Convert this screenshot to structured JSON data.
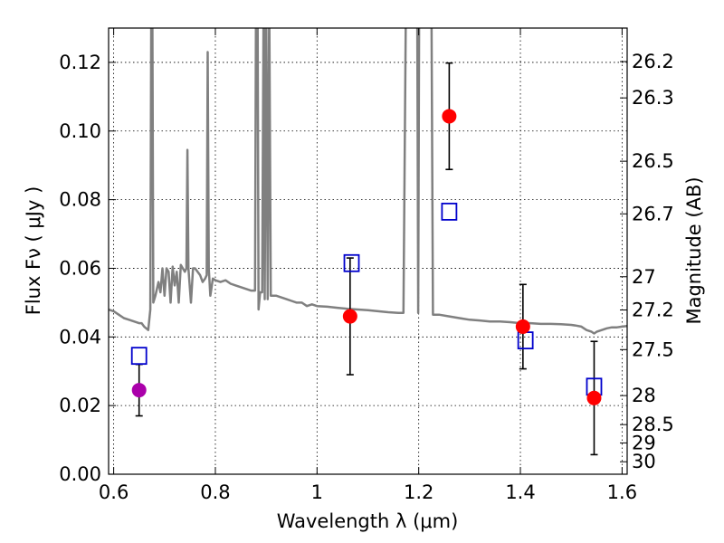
{
  "chart_data": {
    "type": "scatter",
    "xlabel": "Wavelength  λ (μm)",
    "ylabel": "Flux  Fν  ( μJy )",
    "y2label": "Magnitude (AB)",
    "xlim": [
      0.59,
      1.61
    ],
    "ylim": [
      0.0,
      0.13
    ],
    "grid": true,
    "x_ticks": [
      {
        "value": 0.6,
        "label": "0.6"
      },
      {
        "value": 0.8,
        "label": "0.8"
      },
      {
        "value": 1.0,
        "label": "1"
      },
      {
        "value": 1.2,
        "label": "1.2"
      },
      {
        "value": 1.4,
        "label": "1.4"
      },
      {
        "value": 1.6,
        "label": "1.6"
      }
    ],
    "y_ticks": [
      {
        "value": 0.0,
        "label": "0.00"
      },
      {
        "value": 0.02,
        "label": "0.02"
      },
      {
        "value": 0.04,
        "label": "0.04"
      },
      {
        "value": 0.06,
        "label": "0.06"
      },
      {
        "value": 0.08,
        "label": "0.08"
      },
      {
        "value": 0.1,
        "label": "0.10"
      },
      {
        "value": 0.12,
        "label": "0.12"
      }
    ],
    "mag_ticks": [
      "26.2",
      "26.3",
      "26.5",
      "26.7",
      "27",
      "27.2",
      "27.5",
      "28",
      "28.5",
      "29",
      "30"
    ],
    "observed": [
      {
        "x": 0.65,
        "y": 0.0245,
        "err": 0.0075,
        "color": "#aa00aa"
      },
      {
        "x": 1.065,
        "y": 0.046,
        "err": 0.017,
        "color": "#ff0000"
      },
      {
        "x": 1.26,
        "y": 0.1043,
        "err": 0.0155,
        "color": "#ff0000"
      },
      {
        "x": 1.405,
        "y": 0.043,
        "err": 0.0123,
        "color": "#ff0000"
      },
      {
        "x": 1.545,
        "y": 0.0222,
        "err": 0.0165,
        "color": "#ff0000"
      }
    ],
    "model_photometry": {
      "color": "#0000cc",
      "points": [
        {
          "x": 0.65,
          "y": 0.0345
        },
        {
          "x": 1.068,
          "y": 0.0615
        },
        {
          "x": 1.26,
          "y": 0.0765
        },
        {
          "x": 1.41,
          "y": 0.039
        },
        {
          "x": 1.545,
          "y": 0.0255
        }
      ]
    },
    "spectrum": {
      "color": "#808080",
      "points": [
        [
          0.59,
          0.048
        ],
        [
          0.6,
          0.0475
        ],
        [
          0.61,
          0.0465
        ],
        [
          0.62,
          0.0455
        ],
        [
          0.63,
          0.045
        ],
        [
          0.64,
          0.0445
        ],
        [
          0.65,
          0.044
        ],
        [
          0.655,
          0.044
        ],
        [
          0.66,
          0.043
        ],
        [
          0.668,
          0.042
        ],
        [
          0.672,
          0.048
        ],
        [
          0.674,
          0.14
        ],
        [
          0.676,
          0.14
        ],
        [
          0.678,
          0.05
        ],
        [
          0.682,
          0.052
        ],
        [
          0.688,
          0.056
        ],
        [
          0.692,
          0.053
        ],
        [
          0.696,
          0.06
        ],
        [
          0.7,
          0.052
        ],
        [
          0.704,
          0.06
        ],
        [
          0.708,
          0.059
        ],
        [
          0.712,
          0.05
        ],
        [
          0.716,
          0.0605
        ],
        [
          0.72,
          0.055
        ],
        [
          0.724,
          0.059
        ],
        [
          0.728,
          0.05
        ],
        [
          0.732,
          0.061
        ],
        [
          0.736,
          0.06
        ],
        [
          0.74,
          0.059
        ],
        [
          0.743,
          0.06
        ],
        [
          0.745,
          0.0945
        ],
        [
          0.747,
          0.06
        ],
        [
          0.752,
          0.05
        ],
        [
          0.756,
          0.06
        ],
        [
          0.76,
          0.06
        ],
        [
          0.765,
          0.059
        ],
        [
          0.77,
          0.058
        ],
        [
          0.775,
          0.056
        ],
        [
          0.78,
          0.057
        ],
        [
          0.783,
          0.058
        ],
        [
          0.785,
          0.123
        ],
        [
          0.787,
          0.06
        ],
        [
          0.79,
          0.052
        ],
        [
          0.795,
          0.057
        ],
        [
          0.8,
          0.0565
        ],
        [
          0.81,
          0.056
        ],
        [
          0.82,
          0.0565
        ],
        [
          0.83,
          0.0555
        ],
        [
          0.84,
          0.055
        ],
        [
          0.85,
          0.0545
        ],
        [
          0.86,
          0.054
        ],
        [
          0.87,
          0.0535
        ],
        [
          0.878,
          0.0535
        ],
        [
          0.88,
          0.14
        ],
        [
          0.883,
          0.14
        ],
        [
          0.885,
          0.048
        ],
        [
          0.888,
          0.053
        ],
        [
          0.892,
          0.053
        ],
        [
          0.895,
          0.14
        ],
        [
          0.897,
          0.051
        ],
        [
          0.9,
          0.14
        ],
        [
          0.903,
          0.051
        ],
        [
          0.906,
          0.14
        ],
        [
          0.909,
          0.052
        ],
        [
          0.912,
          0.052
        ],
        [
          0.92,
          0.052
        ],
        [
          0.93,
          0.0515
        ],
        [
          0.94,
          0.051
        ],
        [
          0.95,
          0.0505
        ],
        [
          0.96,
          0.05
        ],
        [
          0.97,
          0.05
        ],
        [
          0.98,
          0.049
        ],
        [
          0.99,
          0.0495
        ],
        [
          1.0,
          0.049
        ],
        [
          1.02,
          0.0488
        ],
        [
          1.04,
          0.0485
        ],
        [
          1.06,
          0.0482
        ],
        [
          1.08,
          0.048
        ],
        [
          1.1,
          0.0478
        ],
        [
          1.12,
          0.0475
        ],
        [
          1.14,
          0.0472
        ],
        [
          1.16,
          0.047
        ],
        [
          1.17,
          0.047
        ],
        [
          1.175,
          0.14
        ],
        [
          1.19,
          0.14
        ],
        [
          1.197,
          0.14
        ],
        [
          1.199,
          0.047
        ],
        [
          1.201,
          0.14
        ],
        [
          1.215,
          0.14
        ],
        [
          1.225,
          0.14
        ],
        [
          1.228,
          0.0465
        ],
        [
          1.24,
          0.0465
        ],
        [
          1.26,
          0.046
        ],
        [
          1.28,
          0.0455
        ],
        [
          1.3,
          0.045
        ],
        [
          1.32,
          0.0448
        ],
        [
          1.34,
          0.0445
        ],
        [
          1.36,
          0.0445
        ],
        [
          1.38,
          0.0443
        ],
        [
          1.4,
          0.044
        ],
        [
          1.42,
          0.044
        ],
        [
          1.44,
          0.0438
        ],
        [
          1.46,
          0.0438
        ],
        [
          1.48,
          0.0437
        ],
        [
          1.5,
          0.0435
        ],
        [
          1.51,
          0.0433
        ],
        [
          1.52,
          0.043
        ],
        [
          1.53,
          0.042
        ],
        [
          1.54,
          0.0415
        ],
        [
          1.545,
          0.041
        ],
        [
          1.55,
          0.0415
        ],
        [
          1.56,
          0.042
        ],
        [
          1.57,
          0.0425
        ],
        [
          1.58,
          0.0428
        ],
        [
          1.59,
          0.0428
        ],
        [
          1.6,
          0.043
        ],
        [
          1.61,
          0.0432
        ]
      ]
    }
  }
}
